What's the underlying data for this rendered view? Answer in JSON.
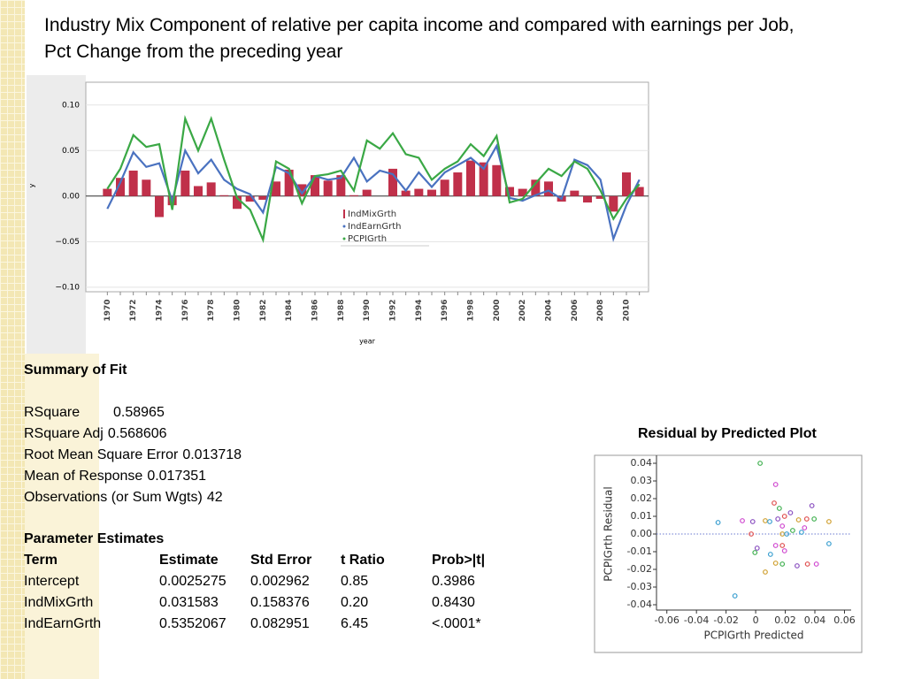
{
  "title": "Industry Mix Component of relative per capita income and compared with earnings per Job, Pct Change from the preceding year",
  "chart_data": [
    {
      "type": "combo",
      "x_label": "year",
      "y_label": "y",
      "categories": [
        "1970",
        null,
        "1972",
        null,
        "1974",
        null,
        "1976",
        null,
        "1978",
        null,
        "1980",
        null,
        "1982",
        null,
        "1984",
        null,
        "1986",
        null,
        "1988",
        null,
        "1990",
        null,
        "1992",
        null,
        "1994",
        null,
        "1996",
        null,
        "1998",
        null,
        "2000",
        null,
        "2002",
        null,
        "2004",
        null,
        "2006",
        null,
        "2008",
        null,
        "2010",
        null
      ],
      "series": [
        {
          "name": "IndMixGrth",
          "type": "bar",
          "color": "#c0304a",
          "values": [
            0.008,
            0.02,
            0.028,
            0.018,
            -0.023,
            -0.01,
            0.028,
            0.011,
            0.015,
            0.001,
            -0.014,
            -0.006,
            -0.004,
            0.016,
            0.029,
            0.013,
            0.023,
            0.017,
            0.023,
            0.001,
            0.007,
            0.0,
            0.03,
            0.006,
            0.008,
            0.007,
            0.018,
            0.026,
            0.039,
            0.037,
            0.034,
            0.01,
            0.008,
            0.018,
            0.016,
            -0.006,
            0.006,
            -0.007,
            -0.003,
            -0.017,
            0.026,
            0.01
          ]
        },
        {
          "name": "IndEarnGrth",
          "type": "line",
          "color": "#4a72c0",
          "values": [
            -0.014,
            0.015,
            0.048,
            0.032,
            0.036,
            -0.005,
            0.05,
            0.025,
            0.04,
            0.018,
            0.008,
            0.002,
            -0.018,
            0.032,
            0.025,
            0.003,
            0.022,
            0.018,
            0.02,
            0.042,
            0.016,
            0.028,
            0.024,
            0.006,
            0.026,
            0.01,
            0.026,
            0.034,
            0.042,
            0.03,
            0.055,
            -0.002,
            -0.005,
            0.001,
            0.006,
            -0.003,
            0.04,
            0.034,
            0.018,
            -0.047,
            -0.01,
            0.018
          ]
        },
        {
          "name": "PCPIGrth",
          "type": "line",
          "color": "#3aa845",
          "values": [
            0.008,
            0.03,
            0.067,
            0.054,
            0.057,
            -0.015,
            0.085,
            0.05,
            0.085,
            0.04,
            -0.002,
            -0.015,
            -0.048,
            0.038,
            0.03,
            -0.008,
            0.022,
            0.024,
            0.028,
            0.006,
            0.061,
            0.052,
            0.069,
            0.046,
            0.042,
            0.018,
            0.03,
            0.038,
            0.057,
            0.044,
            0.066,
            -0.007,
            -0.003,
            0.014,
            0.03,
            0.022,
            0.038,
            0.03,
            0.006,
            -0.025,
            -0.003,
            0.013
          ]
        }
      ],
      "ylim": [
        -0.105,
        0.125
      ],
      "yticks": [
        {
          "value": -0.1,
          "label": "−0.10"
        },
        {
          "value": -0.05,
          "label": "−0.05"
        },
        {
          "value": 0,
          "label": "0.00"
        },
        {
          "value": 0.05,
          "label": "0.05"
        },
        {
          "value": 0.1,
          "label": "0.10"
        }
      ],
      "grid": true
    },
    {
      "type": "scatter",
      "title": "Residual by Predicted Plot",
      "x_label": "PCPIGrth Predicted",
      "y_label": "PCPIGrth Residual",
      "x": [
        -0.0254,
        -0.009,
        -0.003,
        -0.002,
        0.003,
        0.0065,
        0.0095,
        0.0135,
        0.0125,
        0.015,
        0.016,
        0.018,
        0.021,
        0.018,
        0.0195,
        0.0235,
        0.025,
        0.029,
        0.031,
        0.033,
        0.0345,
        0.038,
        0.0395,
        0.0495,
        0.0495,
        0.041,
        0.035,
        0.028,
        0.018,
        0.0135,
        0.01,
        0.0195,
        0.018,
        0.001,
        -0.0005,
        0.0065,
        -0.014,
        0.0135
      ],
      "values": [
        0.0065,
        0.0075,
        0.0,
        0.007,
        0.04,
        0.0075,
        0.007,
        0.028,
        0.0175,
        0.0085,
        0.0145,
        0.0,
        0.0,
        0.0045,
        0.01,
        0.012,
        0.002,
        0.008,
        0.001,
        0.0035,
        0.0085,
        0.016,
        0.0085,
        0.007,
        -0.0055,
        -0.017,
        -0.017,
        -0.018,
        -0.017,
        -0.0165,
        -0.0115,
        -0.0095,
        -0.0065,
        -0.008,
        -0.0105,
        -0.0215,
        -0.035,
        -0.0065
      ],
      "colors": [
        "#3a9fd0",
        "#d04ad0",
        "#e05050",
        "#8a50c0",
        "#40b050",
        "#d0a030"
      ],
      "xlim": [
        -0.067,
        0.0645
      ],
      "xticks": [
        -0.06,
        -0.04,
        -0.02,
        0,
        0.02,
        0.04,
        0.06
      ],
      "ylim": [
        -0.043,
        0.0445
      ],
      "yticks": [
        0.04,
        0.03,
        0.02,
        0.01,
        {
          "value": 0,
          "label": "0.00"
        },
        -0.01,
        -0.02,
        -0.03,
        -0.04
      ]
    }
  ],
  "summary_of_fit": {
    "heading": "Summary of Fit",
    "rows": [
      [
        "RSquare",
        "0.58965"
      ],
      [
        "RSquare Adj",
        "0.568606"
      ],
      [
        "Root Mean Square Error",
        "0.013718"
      ],
      [
        "Mean of Response",
        "0.017351"
      ],
      [
        "Observations (or Sum Wgts)",
        "42"
      ]
    ]
  },
  "parameter_estimates": {
    "heading": "Parameter Estimates",
    "columns": [
      "Term",
      "Estimate",
      "Std Error",
      "t Ratio",
      "Prob>|t|"
    ],
    "rows": [
      [
        "Intercept",
        "0.0025275",
        "0.002962",
        "0.85",
        "0.3986"
      ],
      [
        "IndMixGrth",
        "0.031583",
        "0.158376",
        "0.20",
        "0.8430"
      ],
      [
        "IndEarnGrth",
        "0.5352067",
        "0.082951",
        "6.45",
        "<.0001*"
      ]
    ]
  }
}
